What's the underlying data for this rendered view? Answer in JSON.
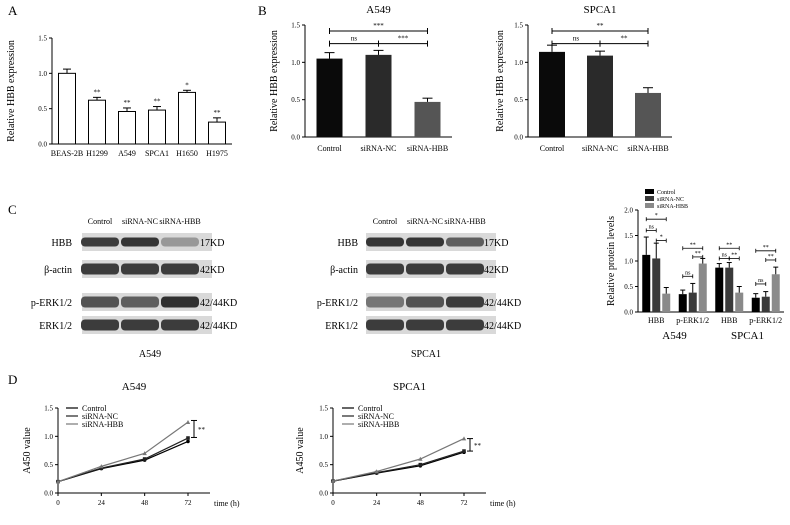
{
  "panels": {
    "A": "A",
    "B": "B",
    "C": "C",
    "D": "D"
  },
  "chart_data": [
    {
      "id": "A",
      "type": "bar",
      "title": "",
      "ylabel": "Relative HBB expression",
      "ylim": [
        0,
        1.5
      ],
      "yticks": [
        "0.0",
        "0.5",
        "1.0",
        "1.5"
      ],
      "ytick_values": [
        0,
        0.5,
        1.0,
        1.5
      ],
      "categories": [
        "BEAS-2B",
        "H1299",
        "A549",
        "SPCA1",
        "H1650",
        "H1975"
      ],
      "values": [
        1.0,
        0.62,
        0.46,
        0.48,
        0.73,
        0.31
      ],
      "errors": [
        0.06,
        0.04,
        0.05,
        0.05,
        0.03,
        0.06
      ],
      "annotations": [
        "",
        "**",
        "**",
        "**",
        "*",
        "**"
      ]
    },
    {
      "id": "B1",
      "type": "bar",
      "title": "A549",
      "ylabel": "Relative HBB expression",
      "ylim": [
        0,
        1.5
      ],
      "yticks": [
        "0.0",
        "0.5",
        "1.0",
        "1.5"
      ],
      "ytick_values": [
        0,
        0.5,
        1.0,
        1.5
      ],
      "categories": [
        "Control",
        "siRNA-NC",
        "siRNA-HBB"
      ],
      "values": [
        1.05,
        1.1,
        0.47
      ],
      "errors": [
        0.08,
        0.06,
        0.05
      ],
      "colors": [
        "#0a0a0a",
        "#2a2a2a",
        "#555555"
      ],
      "brackets": [
        {
          "from": 0,
          "to": 2,
          "label": "***",
          "y": 1.42
        },
        {
          "from": 0,
          "to": 1,
          "label": "ns",
          "y": 1.25
        },
        {
          "from": 1,
          "to": 2,
          "label": "***",
          "y": 1.25
        }
      ]
    },
    {
      "id": "B2",
      "type": "bar",
      "title": "SPCA1",
      "ylabel": "Relative HBB expression",
      "ylim": [
        0,
        1.5
      ],
      "yticks": [
        "0.0",
        "0.5",
        "1.0",
        "1.5"
      ],
      "ytick_values": [
        0,
        0.5,
        1.0,
        1.5
      ],
      "categories": [
        "Control",
        "siRNA-NC",
        "siRNA-HBB"
      ],
      "values": [
        1.14,
        1.09,
        0.59
      ],
      "errors": [
        0.09,
        0.06,
        0.07
      ],
      "colors": [
        "#0a0a0a",
        "#2a2a2a",
        "#555555"
      ],
      "brackets": [
        {
          "from": 0,
          "to": 2,
          "label": "**",
          "y": 1.42
        },
        {
          "from": 0,
          "to": 1,
          "label": "ns",
          "y": 1.25
        },
        {
          "from": 1,
          "to": 2,
          "label": "**",
          "y": 1.25
        }
      ]
    },
    {
      "id": "C",
      "type": "bar",
      "title": "",
      "ylabel": "Relative protein levels",
      "ylim": [
        0,
        2.0
      ],
      "yticks": [
        "0.0",
        "0.5",
        "1.0",
        "1.5",
        "2.0"
      ],
      "ytick_values": [
        0,
        0.5,
        1.0,
        1.5,
        2.0
      ],
      "legend_position": "top-left",
      "categories": [
        "HBB",
        "p-ERK1/2",
        "HBB",
        "p-ERK1/2"
      ],
      "group_labels": [
        "A549",
        "SPCA1"
      ],
      "series": [
        {
          "name": "Control",
          "color": "#000000",
          "values": [
            1.12,
            0.35,
            0.87,
            0.28
          ],
          "errors": [
            0.35,
            0.08,
            0.08,
            0.08
          ]
        },
        {
          "name": "siRNA-NC",
          "color": "#3a3a3a",
          "values": [
            1.05,
            0.38,
            0.87,
            0.3
          ],
          "errors": [
            0.3,
            0.18,
            0.1,
            0.1
          ]
        },
        {
          "name": "siRNA-HBB",
          "color": "#8a8a8a",
          "values": [
            0.36,
            0.95,
            0.38,
            0.74
          ],
          "errors": [
            0.12,
            0.1,
            0.12,
            0.14
          ]
        }
      ],
      "brackets": [
        {
          "group": 0,
          "from": 0,
          "to": 2,
          "label": "*",
          "y": 1.82
        },
        {
          "group": 0,
          "from": 0,
          "to": 1,
          "label": "ns",
          "y": 1.6
        },
        {
          "group": 0,
          "from": 1,
          "to": 2,
          "label": "*",
          "y": 1.4
        },
        {
          "group": 1,
          "from": 0,
          "to": 2,
          "label": "**",
          "y": 1.25
        },
        {
          "group": 1,
          "from": 0,
          "to": 1,
          "label": "ns",
          "y": 0.7
        },
        {
          "group": 1,
          "from": 1,
          "to": 2,
          "label": "**",
          "y": 1.08
        },
        {
          "group": 2,
          "from": 0,
          "to": 2,
          "label": "**",
          "y": 1.25
        },
        {
          "group": 2,
          "from": 0,
          "to": 1,
          "label": "ns",
          "y": 1.05
        },
        {
          "group": 2,
          "from": 1,
          "to": 2,
          "label": "**",
          "y": 1.05
        },
        {
          "group": 3,
          "from": 0,
          "to": 2,
          "label": "**",
          "y": 1.2
        },
        {
          "group": 3,
          "from": 0,
          "to": 1,
          "label": "ns",
          "y": 0.55
        },
        {
          "group": 3,
          "from": 1,
          "to": 2,
          "label": "**",
          "y": 1.02
        }
      ]
    },
    {
      "id": "D1",
      "type": "line",
      "title": "A549",
      "xlabel": "time (h)",
      "ylabel": "A450 value",
      "ylim": [
        0,
        1.5
      ],
      "xlim": [
        0,
        72
      ],
      "yticks": [
        "0.0",
        "0.5",
        "1.0",
        "1.5"
      ],
      "ytick_values": [
        0,
        0.5,
        1.0,
        1.5
      ],
      "xticks": [
        "0",
        "24",
        "48",
        "72"
      ],
      "x": [
        0,
        24,
        48,
        72
      ],
      "legend_position": "top-left",
      "annotation": "**",
      "annotation_range": [
        0.98,
        1.28
      ],
      "series": [
        {
          "name": "Control",
          "color": "#000000",
          "marker": "circle",
          "values": [
            0.2,
            0.43,
            0.58,
            0.91
          ]
        },
        {
          "name": "siRNA-NC",
          "color": "#222222",
          "marker": "square",
          "values": [
            0.2,
            0.44,
            0.6,
            0.97
          ]
        },
        {
          "name": "siRNA-HBB",
          "color": "#777777",
          "marker": "triangle",
          "values": [
            0.2,
            0.47,
            0.7,
            1.25
          ]
        }
      ]
    },
    {
      "id": "D2",
      "type": "line",
      "title": "SPCA1",
      "xlabel": "time (h)",
      "ylabel": "A450 value",
      "ylim": [
        0,
        1.5
      ],
      "xlim": [
        0,
        72
      ],
      "yticks": [
        "0.0",
        "0.5",
        "1.0",
        "1.5"
      ],
      "ytick_values": [
        0,
        0.5,
        1.0,
        1.5
      ],
      "xticks": [
        "0",
        "24",
        "48",
        "72"
      ],
      "x": [
        0,
        24,
        48,
        72
      ],
      "legend_position": "top-left",
      "annotation": "**",
      "annotation_range": [
        0.74,
        0.96
      ],
      "series": [
        {
          "name": "Control",
          "color": "#000000",
          "marker": "circle",
          "values": [
            0.21,
            0.35,
            0.48,
            0.72
          ]
        },
        {
          "name": "siRNA-NC",
          "color": "#222222",
          "marker": "square",
          "values": [
            0.21,
            0.36,
            0.5,
            0.74
          ]
        },
        {
          "name": "siRNA-HBB",
          "color": "#777777",
          "marker": "triangle",
          "values": [
            0.21,
            0.38,
            0.6,
            0.96
          ]
        }
      ]
    }
  ],
  "blots": [
    {
      "id": "blot-a549",
      "cell_line": "A549",
      "lanes": [
        "Control",
        "siRNA-NC",
        "siRNA-HBB"
      ],
      "rows": [
        {
          "protein": "HBB",
          "size": "17KD",
          "intensity": [
            0.85,
            0.88,
            0.45
          ]
        },
        {
          "protein": "β-actin",
          "size": "42KD",
          "intensity": [
            0.85,
            0.85,
            0.85
          ]
        },
        {
          "protein": "p-ERK1/2",
          "size": "42/44KD",
          "intensity": [
            0.75,
            0.7,
            0.9
          ]
        },
        {
          "protein": "ERK1/2",
          "size": "42/44KD",
          "intensity": [
            0.85,
            0.85,
            0.85
          ]
        }
      ]
    },
    {
      "id": "blot-spca1",
      "cell_line": "SPCA1",
      "lanes": [
        "Control",
        "siRNA-NC",
        "siRNA-HBB"
      ],
      "rows": [
        {
          "protein": "HBB",
          "size": "17KD",
          "intensity": [
            0.88,
            0.88,
            0.7
          ]
        },
        {
          "protein": "β-actin",
          "size": "42KD",
          "intensity": [
            0.85,
            0.85,
            0.85
          ]
        },
        {
          "protein": "p-ERK1/2",
          "size": "42/44KD",
          "intensity": [
            0.6,
            0.75,
            0.85
          ]
        },
        {
          "protein": "ERK1/2",
          "size": "42/44KD",
          "intensity": [
            0.85,
            0.85,
            0.85
          ]
        }
      ]
    }
  ]
}
